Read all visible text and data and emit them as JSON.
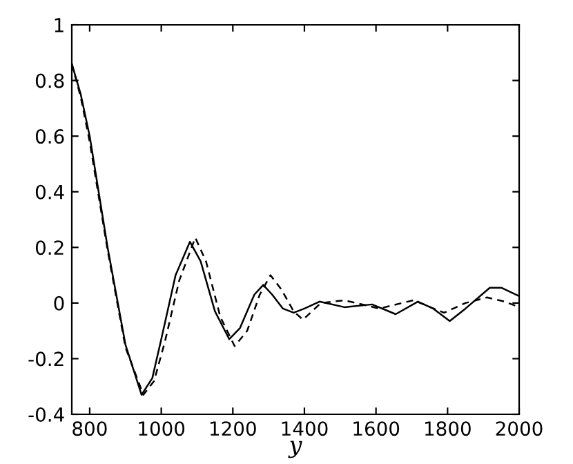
{
  "chart_data": {
    "type": "line",
    "xlabel": "y",
    "series": [
      {
        "color": "#000000",
        "line_style": "solid",
        "x": [
          750,
          775,
          800,
          850,
          900,
          945,
          975,
          1000,
          1040,
          1080,
          1110,
          1150,
          1190,
          1220,
          1260,
          1285,
          1310,
          1340,
          1370,
          1400,
          1442,
          1512,
          1589,
          1655,
          1717,
          1760,
          1806,
          1850,
          1918,
          1950,
          2000
        ],
        "values": [
          0.86,
          0.75,
          0.6,
          0.2,
          -0.15,
          -0.33,
          -0.27,
          -0.13,
          0.1,
          0.22,
          0.15,
          -0.03,
          -0.13,
          -0.09,
          0.03,
          0.065,
          0.03,
          -0.02,
          -0.035,
          -0.02,
          0.005,
          -0.015,
          -0.005,
          -0.04,
          0.005,
          -0.02,
          -0.065,
          -0.02,
          0.055,
          0.055,
          0.025
        ]
      },
      {
        "color": "#000000",
        "line_style": "dashed",
        "x": [
          750,
          775,
          800,
          850,
          900,
          950,
          980,
          1010,
          1050,
          1095,
          1125,
          1165,
          1205,
          1240,
          1275,
          1305,
          1335,
          1370,
          1396,
          1446,
          1512,
          1609,
          1705,
          1790,
          1850,
          1910,
          1960,
          2000
        ],
        "values": [
          0.86,
          0.74,
          0.58,
          0.19,
          -0.16,
          -0.33,
          -0.28,
          -0.14,
          0.08,
          0.235,
          0.15,
          -0.05,
          -0.155,
          -0.1,
          0.03,
          0.1,
          0.05,
          -0.03,
          -0.06,
          0,
          0.01,
          -0.02,
          0.01,
          -0.035,
          0.0,
          0.02,
          0.005,
          -0.015
        ]
      }
    ],
    "xlim": [
      750,
      2000
    ],
    "ylim": [
      -0.4,
      1
    ],
    "xticks": [
      800,
      1000,
      1200,
      1400,
      1600,
      1800,
      2000
    ],
    "yticks": [
      -0.4,
      -0.2,
      0,
      0.2,
      0.4,
      0.6,
      0.8,
      1
    ],
    "grid": false,
    "legend": false,
    "marker": "none"
  }
}
